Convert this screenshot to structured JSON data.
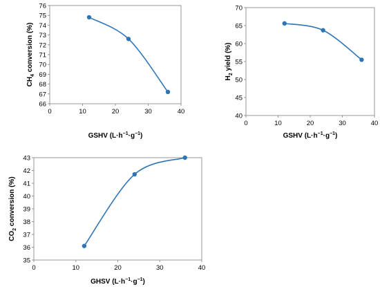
{
  "chart_data": [
    {
      "type": "line",
      "x": [
        12,
        24,
        36
      ],
      "series": [
        {
          "values": [
            74.8,
            72.6,
            67.2
          ]
        }
      ],
      "xlim": [
        0,
        40
      ],
      "ylim": [
        66,
        76
      ],
      "xticks": [
        "0",
        "10",
        "20",
        "30",
        "40"
      ],
      "yticks": [
        "66",
        "67",
        "68",
        "69",
        "70",
        "71",
        "72",
        "73",
        "74",
        "75",
        "76"
      ],
      "xlabel": {
        "main": "GSHV (L",
        "dot": "·",
        "h": "h",
        "sup1": "−1",
        "dot2": "·",
        "g": "g",
        "sup2": "−1",
        "close": ")"
      },
      "ylabel": {
        "pre": "CH",
        "sub": "4",
        "post": " conversion (%)"
      },
      "grid": false,
      "color": "#2E75B6"
    },
    {
      "type": "line",
      "x": [
        12,
        24,
        36
      ],
      "series": [
        {
          "values": [
            65.6,
            63.7,
            55.5
          ]
        }
      ],
      "xlim": [
        0,
        40
      ],
      "ylim": [
        40,
        70
      ],
      "xticks": [
        "0",
        "10",
        "20",
        "30",
        "40"
      ],
      "yticks": [
        "40",
        "45",
        "50",
        "55",
        "60",
        "65",
        "70"
      ],
      "xlabel": {
        "main": "GSHV (L",
        "dot": "·",
        "h": "h",
        "sup1": "−1",
        "dot2": "·",
        "g": "g",
        "sup2": "−1",
        "close": ")"
      },
      "ylabel": {
        "pre": "H",
        "sub": "2",
        "post": " yield (%)"
      },
      "grid": false,
      "color": "#2E75B6"
    },
    {
      "type": "line",
      "x": [
        12,
        24,
        36
      ],
      "series": [
        {
          "values": [
            36.1,
            41.7,
            43.0
          ]
        }
      ],
      "xlim": [
        0,
        40
      ],
      "ylim": [
        35,
        43
      ],
      "xticks": [
        "0",
        "10",
        "20",
        "30",
        "40"
      ],
      "yticks": [
        "35",
        "36",
        "37",
        "38",
        "39",
        "40",
        "41",
        "42",
        "43"
      ],
      "xlabel": {
        "main": "GHSV (L",
        "dot": "·",
        "h": "h",
        "sup1": "−1",
        "dot2": "·",
        "g": "g",
        "sup2": "−1",
        "close": ")"
      },
      "ylabel": {
        "pre": "CO",
        "sub": "2",
        "post": " conversion (%)"
      },
      "grid": false,
      "color": "#2E75B6"
    }
  ]
}
